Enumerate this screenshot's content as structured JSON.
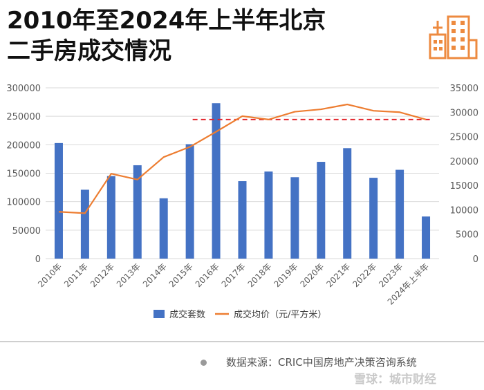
{
  "title_lines": [
    "2010年至2024年上半年北京",
    "二手房成交情况"
  ],
  "logo_icon": "building-icon",
  "colors": {
    "bars": "#4472c4",
    "line": "#ed7d31",
    "reference_line": "#e3262d",
    "logo": "#ed8a3f"
  },
  "chart_data": {
    "type": "bar",
    "categories": [
      "2010年",
      "2011年",
      "2012年",
      "2013年",
      "2014年",
      "2015年",
      "2016年",
      "2017年",
      "2018年",
      "2019年",
      "2020年",
      "2021年",
      "2022年",
      "2023年",
      "2024年上半年"
    ],
    "series": [
      {
        "name": "成交套数",
        "type": "bar",
        "axis": "left",
        "values": [
          203000,
          121000,
          145000,
          164000,
          106000,
          201000,
          273000,
          136000,
          153000,
          143000,
          170000,
          194000,
          142000,
          156000,
          74000
        ]
      },
      {
        "name": "成交均价（元/平方米）",
        "type": "line",
        "axis": "right",
        "values": [
          9600,
          9300,
          17400,
          16200,
          20800,
          22900,
          26000,
          29200,
          28500,
          30100,
          30600,
          31600,
          30300,
          30000,
          28500
        ]
      }
    ],
    "reference_line": {
      "axis": "right",
      "value": 28500,
      "style": "dashed"
    },
    "y_left": {
      "ylim": [
        0,
        300000
      ],
      "ticks": [
        "0",
        "50000",
        "100000",
        "150000",
        "200000",
        "250000",
        "300000"
      ]
    },
    "y_right": {
      "ylim": [
        0,
        35000
      ],
      "ticks": [
        "0",
        "5000",
        "10000",
        "15000",
        "20000",
        "25000",
        "30000",
        "35000"
      ]
    },
    "grid": true,
    "legend_position": "bottom"
  },
  "source_text": "数据来源：CRIC中国房地产决策咨询系统",
  "watermark_text": "雪球：城市财经"
}
